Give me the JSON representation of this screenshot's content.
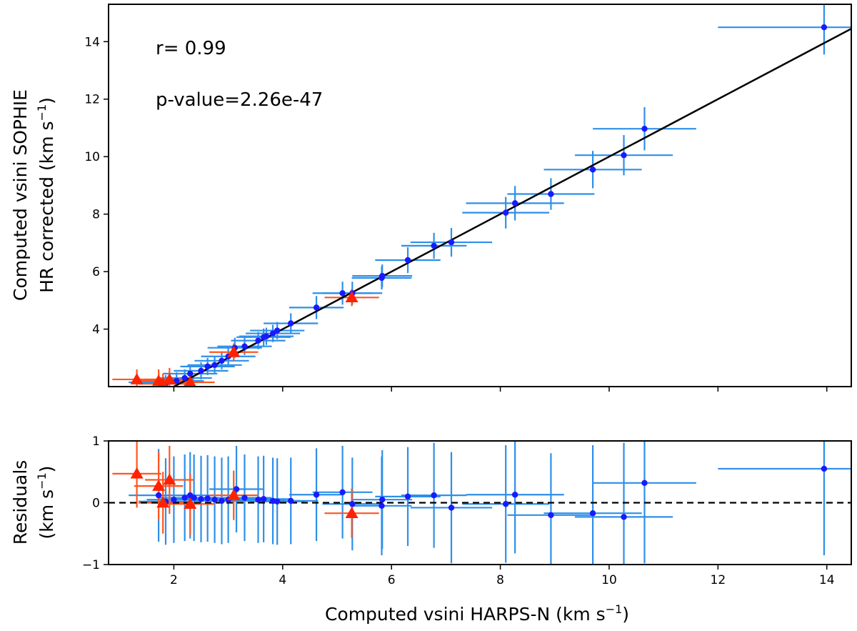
{
  "chart_data": [
    {
      "type": "scatter",
      "panel": "top",
      "xlim": [
        0.8,
        14.45
      ],
      "ylim": [
        2.0,
        15.3
      ],
      "x_ticks": [
        2,
        4,
        6,
        8,
        10,
        12,
        14
      ],
      "y_ticks": [
        4,
        6,
        8,
        10,
        12,
        14
      ],
      "y_tick_labels": [
        "4",
        "6",
        "8",
        "10",
        "12",
        "14"
      ],
      "ylabel_line1": "Computed vsini SOPHIE",
      "ylabel_line2": "HR corrected (km s",
      "ylabel_sup": "−1",
      "ylabel_close": ")",
      "annotations": [
        "r= 0.99",
        "p-value=2.26e-47"
      ],
      "fit_line": {
        "slope": 1.0,
        "intercept": 0.0,
        "color": "#000000"
      },
      "grid": false,
      "series": [
        {
          "marker": "circle",
          "color": "#1a1aff",
          "errorbar_color": "#2e8fe8",
          "points": [
            [
              1.72,
              2.15,
              0.55,
              0.35
            ],
            [
              1.85,
              2.1,
              0.5,
              0.3
            ],
            [
              2.05,
              2.2,
              0.5,
              0.3
            ],
            [
              2.2,
              2.3,
              0.5,
              0.3
            ],
            [
              2.3,
              2.45,
              0.5,
              0.3
            ],
            [
              2.5,
              2.55,
              0.5,
              0.3
            ],
            [
              2.62,
              2.7,
              0.5,
              0.3
            ],
            [
              2.75,
              2.75,
              0.5,
              0.3
            ],
            [
              2.88,
              2.9,
              0.5,
              0.3
            ],
            [
              3.0,
              3.05,
              0.5,
              0.3
            ],
            [
              3.12,
              3.35,
              0.5,
              0.35
            ],
            [
              3.3,
              3.4,
              0.5,
              0.3
            ],
            [
              3.55,
              3.6,
              0.5,
              0.3
            ],
            [
              3.65,
              3.72,
              0.5,
              0.3
            ],
            [
              3.7,
              3.75,
              0.5,
              0.3
            ],
            [
              3.82,
              3.85,
              0.5,
              0.3
            ],
            [
              3.9,
              3.95,
              0.5,
              0.3
            ],
            [
              4.15,
              4.2,
              0.5,
              0.35
            ],
            [
              4.62,
              4.75,
              0.5,
              0.4
            ],
            [
              5.1,
              5.25,
              0.55,
              0.4
            ],
            [
              5.28,
              5.25,
              0.55,
              0.4
            ],
            [
              5.82,
              5.78,
              0.55,
              0.4
            ],
            [
              5.83,
              5.85,
              0.55,
              0.4
            ],
            [
              6.3,
              6.4,
              0.6,
              0.45
            ],
            [
              6.78,
              6.9,
              0.6,
              0.45
            ],
            [
              7.1,
              7.02,
              0.75,
              0.5
            ],
            [
              8.1,
              8.05,
              0.8,
              0.55
            ],
            [
              8.27,
              8.38,
              0.9,
              0.6
            ],
            [
              8.93,
              8.7,
              0.8,
              0.55
            ],
            [
              9.7,
              9.55,
              0.9,
              0.65
            ],
            [
              10.27,
              10.05,
              0.9,
              0.7
            ],
            [
              10.65,
              10.97,
              0.95,
              0.75
            ],
            [
              13.95,
              14.5,
              1.95,
              0.95
            ]
          ]
        },
        {
          "marker": "triangle",
          "color": "#ff2200",
          "errorbar_color": "#ff5522",
          "points": [
            [
              1.32,
              2.25,
              0.45,
              0.35
            ],
            [
              1.72,
              2.2,
              0.45,
              0.4
            ],
            [
              1.8,
              2.1,
              0.45,
              0.35
            ],
            [
              1.92,
              2.25,
              0.45,
              0.4
            ],
            [
              2.3,
              2.15,
              0.45,
              0.3
            ],
            [
              3.1,
              3.2,
              0.45,
              0.3
            ],
            [
              5.27,
              5.1,
              0.5,
              0.3
            ]
          ]
        }
      ]
    },
    {
      "type": "scatter",
      "panel": "bottom",
      "xlim": [
        0.8,
        14.45
      ],
      "ylim": [
        -1.0,
        1.0
      ],
      "x_ticks": [
        2,
        4,
        6,
        8,
        10,
        12,
        14
      ],
      "y_ticks": [
        -1,
        0,
        1
      ],
      "y_tick_labels": [
        "−1",
        "0",
        "1"
      ],
      "xlabel": "Computed vsini HARPS-N (km s",
      "xlabel_sup": "−1",
      "xlabel_close": ")",
      "ylabel_line1": "Residuals",
      "ylabel_line2": "(km s",
      "ylabel_sup": "−1",
      "ylabel_close": ")",
      "reference_line": {
        "y": 0,
        "style": "dashed",
        "color": "#000000"
      },
      "grid": false,
      "series": [
        {
          "marker": "circle",
          "color": "#1a1aff",
          "errorbar_color": "#2e8fe8",
          "points": [
            [
              1.72,
              0.12,
              0.55,
              0.75
            ],
            [
              1.85,
              0.02,
              0.5,
              0.7
            ],
            [
              2.0,
              0.05,
              0.5,
              0.7
            ],
            [
              2.2,
              0.08,
              0.5,
              0.7
            ],
            [
              2.3,
              0.12,
              0.5,
              0.7
            ],
            [
              2.37,
              0.08,
              0.5,
              0.7
            ],
            [
              2.5,
              0.06,
              0.5,
              0.7
            ],
            [
              2.62,
              0.07,
              0.5,
              0.7
            ],
            [
              2.75,
              0.05,
              0.5,
              0.7
            ],
            [
              2.88,
              0.03,
              0.5,
              0.7
            ],
            [
              3.0,
              0.05,
              0.5,
              0.7
            ],
            [
              3.15,
              0.22,
              0.5,
              0.7
            ],
            [
              3.3,
              0.08,
              0.5,
              0.7
            ],
            [
              3.55,
              0.05,
              0.5,
              0.7
            ],
            [
              3.65,
              0.06,
              0.5,
              0.7
            ],
            [
              3.82,
              0.03,
              0.5,
              0.7
            ],
            [
              3.9,
              0.02,
              0.5,
              0.7
            ],
            [
              4.15,
              0.03,
              0.5,
              0.7
            ],
            [
              4.62,
              0.13,
              0.5,
              0.75
            ],
            [
              5.1,
              0.17,
              0.55,
              0.75
            ],
            [
              5.28,
              -0.02,
              0.55,
              0.75
            ],
            [
              5.82,
              -0.05,
              0.55,
              0.8
            ],
            [
              5.83,
              0.05,
              0.55,
              0.8
            ],
            [
              6.3,
              0.1,
              0.6,
              0.8
            ],
            [
              6.78,
              0.12,
              0.6,
              0.85
            ],
            [
              7.1,
              -0.08,
              0.75,
              0.9
            ],
            [
              8.1,
              -0.02,
              0.8,
              0.95
            ],
            [
              8.27,
              0.13,
              0.9,
              0.95
            ],
            [
              8.93,
              -0.2,
              0.8,
              1.0
            ],
            [
              9.7,
              -0.17,
              0.9,
              1.1
            ],
            [
              10.27,
              -0.23,
              0.9,
              1.2
            ],
            [
              10.65,
              0.32,
              0.95,
              1.3
            ],
            [
              13.95,
              0.55,
              1.95,
              1.4
            ]
          ]
        },
        {
          "marker": "triangle",
          "color": "#ff2200",
          "errorbar_color": "#ff5522",
          "points": [
            [
              1.32,
              0.47,
              0.45,
              0.55
            ],
            [
              1.72,
              0.27,
              0.45,
              0.55
            ],
            [
              1.8,
              0.0,
              0.45,
              0.5
            ],
            [
              1.92,
              0.37,
              0.45,
              0.55
            ],
            [
              2.3,
              -0.02,
              0.45,
              0.5
            ],
            [
              3.1,
              0.12,
              0.45,
              0.4
            ],
            [
              5.27,
              -0.17,
              0.5,
              0.4
            ]
          ]
        }
      ]
    }
  ]
}
